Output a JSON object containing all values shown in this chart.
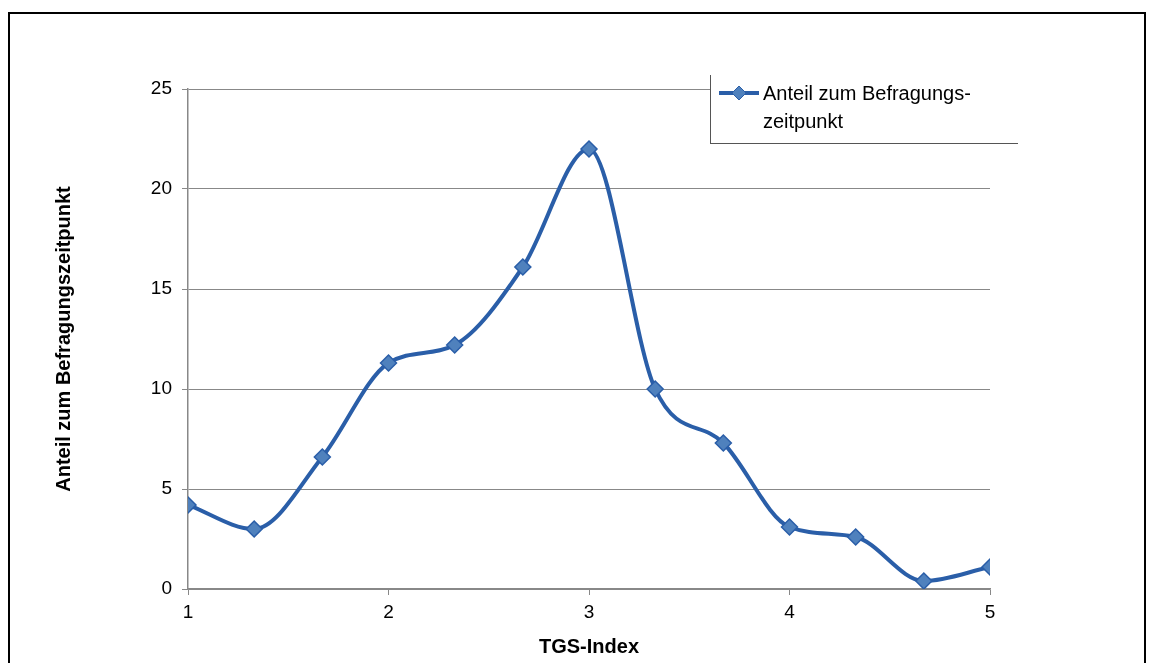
{
  "chart_data": {
    "type": "line",
    "xlabel": "TGS-Index",
    "ylabel": "Anteil zum Befragungszeitpunkt",
    "x": [
      1,
      1.33,
      1.67,
      2,
      2.33,
      2.67,
      3,
      3.33,
      3.67,
      4,
      4.33,
      4.67,
      5
    ],
    "series": [
      {
        "name": "Anteil zum Befragungs-zeitpunkt",
        "color": "#2a5ea8",
        "values": [
          4.2,
          3.0,
          6.6,
          11.3,
          12.2,
          16.1,
          22.0,
          10.0,
          7.3,
          3.1,
          2.6,
          0.4,
          1.1
        ]
      }
    ],
    "xlim": [
      1,
      5
    ],
    "xticks": [
      1,
      2,
      3,
      4,
      5
    ],
    "ylim": [
      0,
      25
    ],
    "yticks": [
      0,
      5,
      10,
      15,
      20,
      25
    ],
    "grid": "y",
    "legend": "top right",
    "marker": "diamond",
    "line_style": "solid"
  }
}
